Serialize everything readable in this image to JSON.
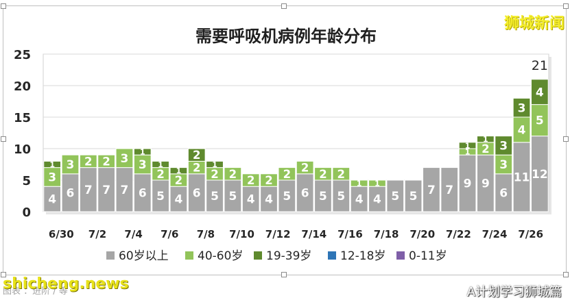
{
  "brand": "狮城新闻",
  "watermark_left": "shicheng.news",
  "watermark_right": "A计划学习狮城篇",
  "caption": "图表 ：进阶 / 等",
  "colors": {
    "s60": "#a6a6a6",
    "s40": "#92c45a",
    "s19": "#5f8a2e",
    "s12": "#2e75b6",
    "s0": "#7f5fa8",
    "grid": "#d9d9d9",
    "bg_shadow": "#e6e6e6"
  },
  "chart_data": {
    "type": "bar",
    "stacked": true,
    "title": "需要呼吸机病例年龄分布",
    "ylim": [
      0,
      25
    ],
    "yticks": [
      0,
      5,
      10,
      15,
      20,
      25
    ],
    "grid": true,
    "legend_position": "bottom",
    "categories": [
      "6/30",
      "7/1",
      "7/2",
      "7/3",
      "7/4",
      "7/5",
      "7/6",
      "7/7",
      "7/8",
      "7/9",
      "7/10",
      "7/11",
      "7/12",
      "7/13",
      "7/14",
      "7/15",
      "7/16",
      "7/17",
      "7/18",
      "7/19",
      "7/20",
      "7/21",
      "7/22",
      "7/23",
      "7/24",
      "7/25",
      "7/26",
      "7/27"
    ],
    "xtick_labels": [
      "6/30",
      "",
      "7/2",
      "",
      "7/4",
      "",
      "7/6",
      "",
      "7/8",
      "",
      "7/10",
      "",
      "7/12",
      "",
      "7/14",
      "",
      "7/16",
      "",
      "7/18",
      "",
      "7/20",
      "",
      "7/22",
      "",
      "7/24",
      "",
      "7/26",
      ""
    ],
    "series": [
      {
        "name": "60岁以上",
        "key": "s60",
        "values": [
          4,
          6,
          7,
          7,
          7,
          6,
          5,
          4,
          6,
          5,
          5,
          4,
          4,
          5,
          6,
          5,
          5,
          4,
          4,
          5,
          5,
          7,
          7,
          9,
          9,
          6,
          11,
          12
        ]
      },
      {
        "name": "40-60岁",
        "key": "s40",
        "values": [
          3,
          3,
          2,
          2,
          3,
          3,
          2,
          2,
          2,
          2,
          2,
          2,
          2,
          2,
          2,
          2,
          2,
          1,
          1,
          0,
          0,
          0,
          0,
          1,
          2,
          3,
          4,
          5
        ]
      },
      {
        "name": "19-39岁",
        "key": "s19",
        "values": [
          1,
          0,
          0,
          0,
          0,
          1,
          1,
          1,
          2,
          1,
          0,
          0,
          0,
          0,
          0,
          0,
          0,
          0,
          0,
          0,
          0,
          0,
          0,
          1,
          1,
          3,
          3,
          4
        ]
      },
      {
        "name": "12-18岁",
        "key": "s12",
        "values": [
          0,
          0,
          0,
          0,
          0,
          0,
          0,
          0,
          0,
          0,
          0,
          0,
          0,
          0,
          0,
          0,
          0,
          0,
          0,
          0,
          0,
          0,
          0,
          0,
          0,
          0,
          0,
          0
        ]
      },
      {
        "name": "0-11岁",
        "key": "s0",
        "values": [
          0,
          0,
          0,
          0,
          0,
          0,
          0,
          0,
          0,
          0,
          0,
          0,
          0,
          0,
          0,
          0,
          0,
          0,
          0,
          0,
          0,
          0,
          0,
          0,
          0,
          0,
          0,
          0
        ]
      }
    ],
    "total_labels": [
      {
        "index": 27,
        "text": "21"
      }
    ]
  }
}
